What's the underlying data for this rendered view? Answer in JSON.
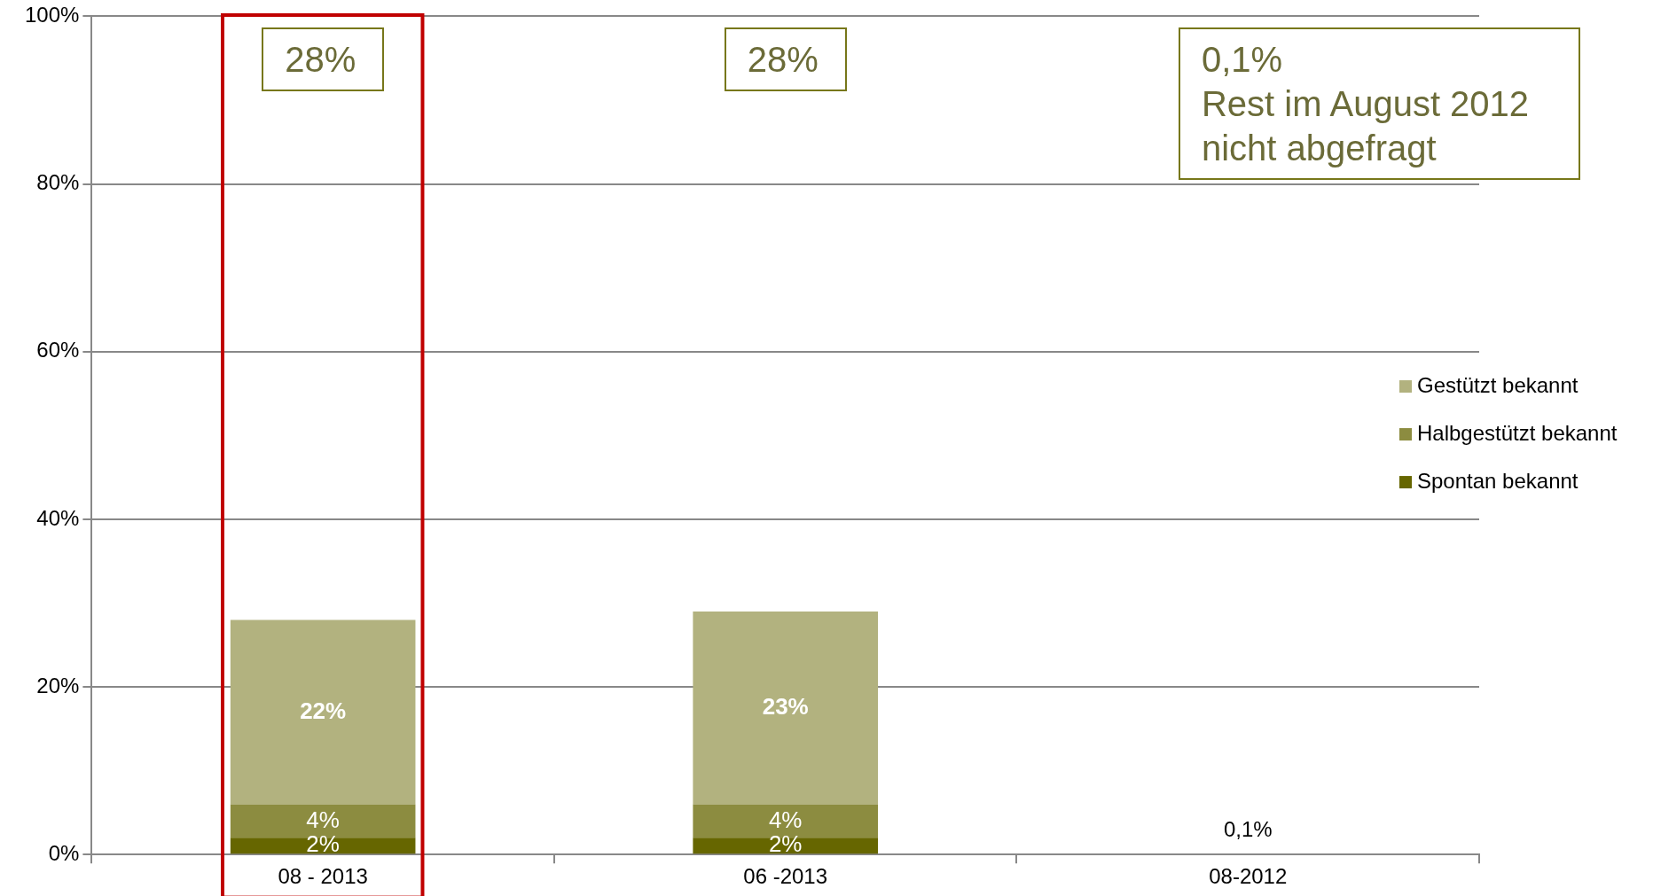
{
  "chart_data": {
    "type": "bar",
    "stacked": true,
    "categories": [
      "08 - 2013",
      "06 -2013",
      "08-2012"
    ],
    "series": [
      {
        "name": "Spontan bekannt",
        "color": "#666600",
        "values": [
          2,
          2,
          0.1
        ],
        "value_labels": [
          "2%",
          "2%",
          "0,1%"
        ]
      },
      {
        "name": "Halbgestützt bekannt",
        "color": "#8c8c40",
        "values": [
          4,
          4,
          null
        ],
        "value_labels": [
          "4%",
          "4%",
          null
        ]
      },
      {
        "name": "Gestützt bekannt",
        "color": "#b2b27f",
        "values": [
          22,
          23,
          null
        ],
        "value_labels": [
          "22%",
          "23%",
          null
        ]
      }
    ],
    "ylim": [
      0,
      100
    ],
    "yticks": [
      {
        "value": 0,
        "label": "0%"
      },
      {
        "value": 20,
        "label": "20%"
      },
      {
        "value": 40,
        "label": "40%"
      },
      {
        "value": 60,
        "label": "60%"
      },
      {
        "value": 80,
        "label": "80%"
      },
      {
        "value": 100,
        "label": "100%"
      }
    ],
    "grid": "y",
    "legend": "right",
    "annotations": [
      "28%",
      "28%",
      "0,1%\nRest im August 2012\nnicht abgefragt"
    ]
  }
}
